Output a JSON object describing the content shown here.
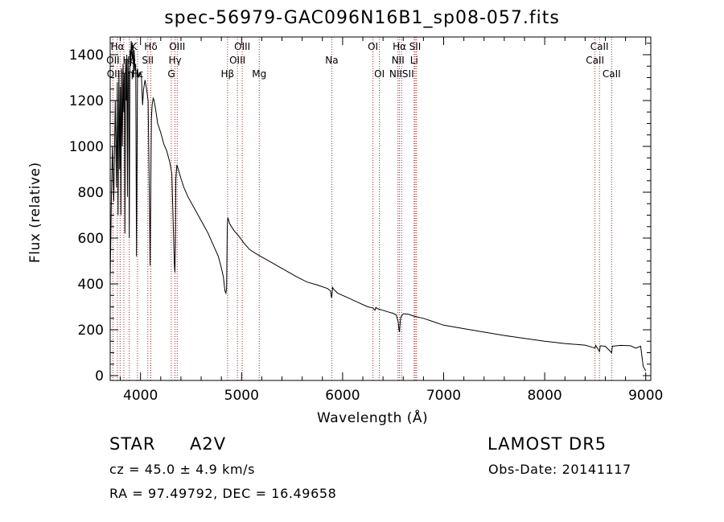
{
  "chart_data": {
    "type": "line",
    "title": "spec-56979-GAC096N16B1_sp08-057.fits",
    "xlabel": "Wavelength (Å)",
    "ylabel": "Flux (relative)",
    "xlim": [
      3700,
      9050
    ],
    "ylim": [
      0,
      1480
    ],
    "xticks": [
      4000,
      5000,
      6000,
      7000,
      8000,
      9000
    ],
    "yticks": [
      0,
      200,
      400,
      600,
      800,
      1000,
      1200,
      1400
    ],
    "series": [
      {
        "x": [
          3700,
          3712,
          3722,
          3735,
          3750,
          3762,
          3770,
          3778,
          3786,
          3794,
          3800,
          3806,
          3812,
          3820,
          3827,
          3834,
          3840,
          3846,
          3852,
          3858,
          3864,
          3870,
          3876,
          3882,
          3889,
          3896,
          3902,
          3908,
          3914,
          3920,
          3926,
          3932,
          3938,
          3945,
          3952,
          3960,
          3970,
          3980,
          3990,
          4000,
          4010,
          4020,
          4030,
          4045,
          4060,
          4075,
          4090,
          4095,
          4101,
          4108,
          4115,
          4125,
          4135,
          4150,
          4170,
          4200,
          4230,
          4260,
          4290,
          4310,
          4325,
          4335,
          4340,
          4345,
          4350,
          4360,
          4380,
          4400,
          4430,
          4470,
          4520,
          4570,
          4620,
          4670,
          4720,
          4770,
          4800,
          4820,
          4835,
          4845,
          4852,
          4858,
          4861,
          4864,
          4870,
          4880,
          4900,
          4930,
          4970,
          5020,
          5080,
          5150,
          5250,
          5350,
          5450,
          5550,
          5650,
          5750,
          5850,
          5880,
          5890,
          5895,
          5900,
          5910,
          5950,
          6050,
          6150,
          6250,
          6300,
          6320,
          6330,
          6340,
          6360,
          6400,
          6450,
          6500,
          6530,
          6550,
          6558,
          6563,
          6568,
          6575,
          6600,
          6650,
          6700,
          6800,
          6900,
          7000,
          7200,
          7400,
          7600,
          7800,
          8000,
          8200,
          8400,
          8498,
          8505,
          8542,
          8550,
          8600,
          8662,
          8670,
          8750,
          8850,
          8900,
          8950,
          8975,
          9000
        ],
        "y": [
          420,
          780,
          1000,
          760,
          1200,
          820,
          1280,
          700,
          1330,
          900,
          1260,
          700,
          1340,
          1000,
          1360,
          1150,
          1320,
          620,
          1380,
          1200,
          1400,
          780,
          1380,
          1300,
          600,
          1420,
          1350,
          1460,
          1400,
          1380,
          1440,
          1300,
          1420,
          1330,
          1360,
          520,
          1340,
          1300,
          1320,
          1320,
          1300,
          1180,
          1250,
          1290,
          1250,
          1200,
          700,
          480,
          800,
          1120,
          1180,
          1210,
          1200,
          1160,
          1100,
          1060,
          1010,
          980,
          930,
          880,
          640,
          480,
          450,
          560,
          860,
          920,
          890,
          860,
          820,
          780,
          740,
          700,
          660,
          620,
          570,
          520,
          470,
          430,
          370,
          360,
          380,
          640,
          670,
          690,
          680,
          665,
          650,
          630,
          610,
          580,
          550,
          530,
          505,
          480,
          455,
          430,
          408,
          395,
          380,
          370,
          340,
          350,
          385,
          378,
          360,
          340,
          320,
          300,
          295,
          285,
          298,
          293,
          290,
          285,
          278,
          272,
          265,
          235,
          200,
          190,
          220,
          255,
          270,
          268,
          260,
          250,
          235,
          220,
          205,
          190,
          175,
          162,
          150,
          140,
          133,
          120,
          132,
          105,
          130,
          128,
          100,
          128,
          132,
          130,
          120,
          128,
          40,
          20
        ]
      }
    ],
    "lines": [
      {
        "label": "Hα",
        "wl": 3771
      },
      {
        "label": "Hθ",
        "wl": 3798
      },
      {
        "label": "Hη",
        "wl": 3835
      },
      {
        "label": "Hζ",
        "wl": 3889
      },
      {
        "label": "Hε",
        "wl": 3970
      },
      {
        "label": "OII",
        "wl": 3727
      },
      {
        "label": "Hδ",
        "wl": 4102
      },
      {
        "label": "SII",
        "wl": 4072
      },
      {
        "label": "OIII",
        "wl": 4363
      },
      {
        "label": "Hγ",
        "wl": 4341
      },
      {
        "label": "G",
        "wl": 4305
      },
      {
        "label": "Hβ",
        "wl": 4861
      },
      {
        "label": "OIII",
        "wl": 4959
      },
      {
        "label": "OIII",
        "wl": 5007
      },
      {
        "label": "Mg",
        "wl": 5175
      },
      {
        "label": "Na",
        "wl": 5893
      },
      {
        "label": "OI",
        "wl": 6300
      },
      {
        "label": "OI",
        "wl": 6364
      },
      {
        "label": "Hα",
        "wl": 6563
      },
      {
        "label": "NII",
        "wl": 6548
      },
      {
        "label": "NII",
        "wl": 6584
      },
      {
        "label": "SII",
        "wl": 6717
      },
      {
        "label": "SII",
        "wl": 6731
      },
      {
        "label": "Li",
        "wl": 6708
      },
      {
        "label": "CaII",
        "wl": 8498
      },
      {
        "label": "CaII",
        "wl": 8542
      },
      {
        "label": "CaII",
        "wl": 8662
      }
    ],
    "line_labels": [
      {
        "text": "Hα",
        "wl": 3771,
        "row": 0
      },
      {
        "text": "K",
        "wl": 3934,
        "row": 0
      },
      {
        "text": "Hδ",
        "wl": 4102,
        "row": 0
      },
      {
        "text": "OIII",
        "wl": 4363,
        "row": 0
      },
      {
        "text": "OIII",
        "wl": 5007,
        "row": 0
      },
      {
        "text": "OI",
        "wl": 6300,
        "row": 0
      },
      {
        "text": "Hα",
        "wl": 6563,
        "row": 0
      },
      {
        "text": "SII",
        "wl": 6717,
        "row": 0
      },
      {
        "text": "CaII",
        "wl": 8542,
        "row": 0
      },
      {
        "text": "OII",
        "wl": 3727,
        "row": 1
      },
      {
        "text": "He",
        "wl": 3889,
        "row": 1
      },
      {
        "text": "SII",
        "wl": 4072,
        "row": 1
      },
      {
        "text": "Hγ",
        "wl": 4341,
        "row": 1
      },
      {
        "text": "OIII",
        "wl": 4959,
        "row": 1
      },
      {
        "text": "Na",
        "wl": 5893,
        "row": 1
      },
      {
        "text": "NII",
        "wl": 6548,
        "row": 1
      },
      {
        "text": "Li",
        "wl": 6708,
        "row": 1
      },
      {
        "text": "CaII",
        "wl": 8498,
        "row": 1
      },
      {
        "text": "OIIHη",
        "wl": 3798,
        "row": 2
      },
      {
        "text": "Hε",
        "wl": 3970,
        "row": 2
      },
      {
        "text": "G",
        "wl": 4305,
        "row": 2
      },
      {
        "text": "Hβ",
        "wl": 4861,
        "row": 2
      },
      {
        "text": "Mg",
        "wl": 5175,
        "row": 2
      },
      {
        "text": "OI",
        "wl": 6364,
        "row": 2
      },
      {
        "text": "NIISII",
        "wl": 6584,
        "row": 2
      },
      {
        "text": "CaII",
        "wl": 8662,
        "row": 2
      }
    ],
    "colors": {
      "spectrum": "#000000",
      "line_markers": "#b22222",
      "axes": "#000000"
    }
  },
  "info": {
    "class_label": "STAR",
    "subclass": "A2V",
    "survey": "LAMOST DR5",
    "cz": "cz = 45.0 ± 4.9 km/s",
    "obs_date": "Obs-Date: 20141117",
    "coords": "RA =  97.49792, DEC =  16.49658"
  }
}
